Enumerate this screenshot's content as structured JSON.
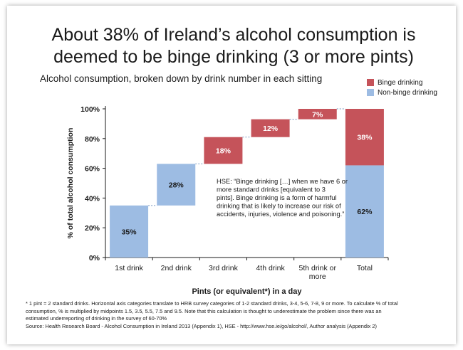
{
  "title": "About 38% of Ireland’s alcohol consumption is deemed to be binge drinking (3 or more pints)",
  "subtitle": "Alcohol consumption, broken down by drink number in each sitting",
  "legend": {
    "binge": "Binge drinking",
    "non_binge": "Non-binge drinking"
  },
  "colors": {
    "binge": "#c5535a",
    "non_binge": "#9dbce3",
    "connector": "#8fa9cc"
  },
  "callout": {
    "lines": [
      "HSE: “Binge drinking […] when we have 6 or",
      "more standard drinks [equivalent to 3",
      "pints]. Binge drinking is a form of harmful",
      "drinking that is likely to increase our risk of",
      "accidents, injuries, violence and poisoning.”"
    ]
  },
  "footnote": {
    "line1": "* 1 pint = 2 standard drinks. Horizontal axis categories translate to HRB survey categories of 1-2 standard drinks, 3-4, 5-6, 7-8, 9 or more. To calculate % of total",
    "line2": "consumption, % is multiplied by midpoints 1.5, 3.5, 5.5, 7.5 and 9.5. Note that this calculation is thought to underestimate the problem since there was an",
    "line3": "estimated underreporting of drinking in the survey of 60-70%",
    "source": "Source: Health Research Board - Alcohol Consumption in Ireland 2013 (Appendix 1), HSE - http://www.hse.ie/go/alcohol/, Author analysis (Appendix 2)"
  },
  "chart_data": {
    "type": "bar",
    "subtype": "waterfall",
    "title": "About 38% of Ireland’s alcohol consumption is deemed to be binge drinking (3 or more pints)",
    "subtitle": "Alcohol consumption, broken down by drink number in each sitting",
    "xlabel": "Pints (or equivalent*) in a day",
    "ylabel": "% of total alcohol consumption",
    "ylim": [
      0,
      100
    ],
    "yticks": [
      "0%",
      "20%",
      "40%",
      "60%",
      "80%",
      "100%"
    ],
    "categories": [
      {
        "lines": [
          "1st drink"
        ]
      },
      {
        "lines": [
          "2nd drink"
        ]
      },
      {
        "lines": [
          "3rd drink"
        ]
      },
      {
        "lines": [
          "4th drink"
        ]
      },
      {
        "lines": [
          "5th drink or",
          "more"
        ]
      },
      {
        "lines": [
          "Total"
        ]
      }
    ],
    "steps": [
      {
        "category": "1st drink",
        "start": 0,
        "end": 35,
        "label": "35%",
        "series": "Non-binge drinking"
      },
      {
        "category": "2nd drink",
        "start": 35,
        "end": 63,
        "label": "28%",
        "series": "Non-binge drinking"
      },
      {
        "category": "3rd drink",
        "start": 63,
        "end": 81,
        "label": "18%",
        "series": "Binge drinking"
      },
      {
        "category": "4th drink",
        "start": 81,
        "end": 93,
        "label": "12%",
        "series": "Binge drinking"
      },
      {
        "category": "5th drink or more",
        "start": 93,
        "end": 100,
        "label": "7%",
        "series": "Binge drinking"
      }
    ],
    "total": {
      "category": "Total",
      "segments": [
        {
          "series": "Non-binge drinking",
          "start": 0,
          "end": 62,
          "label": "62%"
        },
        {
          "series": "Binge drinking",
          "start": 62,
          "end": 100,
          "label": "38%"
        }
      ]
    },
    "series": [
      {
        "name": "Binge drinking"
      },
      {
        "name": "Non-binge drinking"
      }
    ],
    "legend_position": "top-right",
    "grid": false
  }
}
